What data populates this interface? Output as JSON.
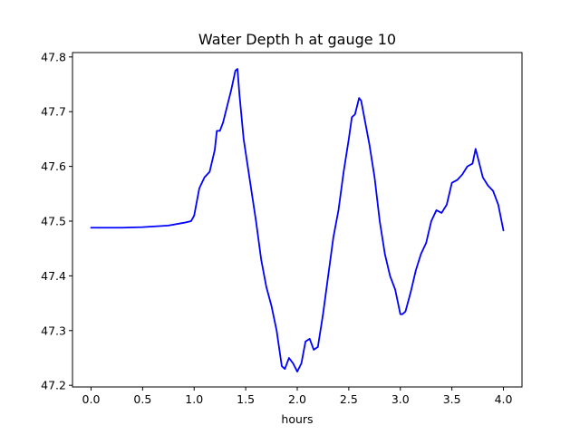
{
  "chart_data": {
    "type": "line",
    "title": "Water Depth h at gauge 10",
    "xlabel": "hours",
    "ylabel": "",
    "xlim": [
      -0.18,
      4.18
    ],
    "ylim": [
      47.197,
      47.808
    ],
    "xticks": [
      0.0,
      0.5,
      1.0,
      1.5,
      2.0,
      2.5,
      3.0,
      3.5,
      4.0
    ],
    "xtick_labels": [
      "0.0",
      "0.5",
      "1.0",
      "1.5",
      "2.0",
      "2.5",
      "3.0",
      "3.5",
      "4.0"
    ],
    "yticks": [
      47.2,
      47.3,
      47.4,
      47.5,
      47.6,
      47.7,
      47.8
    ],
    "ytick_labels": [
      "47.2",
      "47.3",
      "47.4",
      "47.5",
      "47.6",
      "47.7",
      "47.8"
    ],
    "grid": false,
    "series": [
      {
        "color": "#0000ff",
        "x": [
          0.0,
          0.3,
          0.5,
          0.75,
          0.9,
          0.97,
          1.0,
          1.05,
          1.1,
          1.15,
          1.2,
          1.22,
          1.25,
          1.28,
          1.32,
          1.36,
          1.4,
          1.42,
          1.44,
          1.48,
          1.52,
          1.56,
          1.6,
          1.65,
          1.7,
          1.75,
          1.8,
          1.85,
          1.88,
          1.92,
          1.96,
          2.0,
          2.04,
          2.08,
          2.12,
          2.16,
          2.2,
          2.25,
          2.3,
          2.35,
          2.4,
          2.45,
          2.5,
          2.53,
          2.56,
          2.6,
          2.62,
          2.66,
          2.7,
          2.75,
          2.8,
          2.85,
          2.9,
          2.95,
          3.0,
          3.02,
          3.05,
          3.1,
          3.15,
          3.2,
          3.25,
          3.3,
          3.35,
          3.4,
          3.45,
          3.5,
          3.55,
          3.6,
          3.65,
          3.7,
          3.73,
          3.76,
          3.8,
          3.85,
          3.9,
          3.95,
          4.0
        ],
        "y": [
          47.488,
          47.488,
          47.489,
          47.492,
          47.497,
          47.5,
          47.51,
          47.56,
          47.58,
          47.59,
          47.63,
          47.665,
          47.665,
          47.68,
          47.71,
          47.74,
          47.775,
          47.778,
          47.73,
          47.65,
          47.6,
          47.55,
          47.5,
          47.43,
          47.38,
          47.345,
          47.3,
          47.235,
          47.23,
          47.25,
          47.24,
          47.225,
          47.24,
          47.28,
          47.285,
          47.265,
          47.27,
          47.33,
          47.4,
          47.47,
          47.52,
          47.59,
          47.65,
          47.69,
          47.695,
          47.725,
          47.72,
          47.68,
          47.64,
          47.58,
          47.5,
          47.44,
          47.4,
          47.375,
          47.33,
          47.33,
          47.335,
          47.37,
          47.41,
          47.44,
          47.46,
          47.5,
          47.52,
          47.515,
          47.53,
          47.57,
          47.575,
          47.585,
          47.6,
          47.605,
          47.632,
          47.61,
          47.58,
          47.565,
          47.555,
          47.53,
          47.483
        ]
      }
    ]
  }
}
